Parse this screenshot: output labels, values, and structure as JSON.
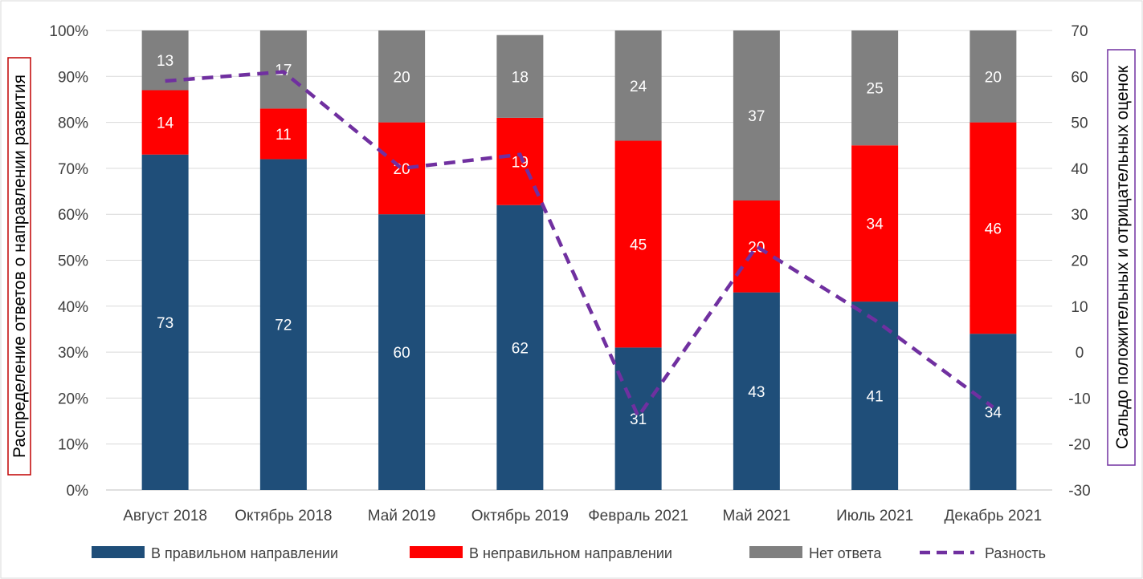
{
  "chart_data": {
    "type": "bar",
    "stacked": true,
    "categories": [
      "Август 2018",
      "Октябрь 2018",
      "Май 2019",
      "Октябрь 2019",
      "Февраль 2021",
      "Май 2021",
      "Июль 2021",
      "Декабрь 2021"
    ],
    "series": [
      {
        "name": "В правильном направлении",
        "color": "#1F4E79",
        "values": [
          73,
          72,
          60,
          62,
          31,
          43,
          41,
          34
        ]
      },
      {
        "name": "В неправильном направлении",
        "color": "#FF0000",
        "values": [
          14,
          11,
          20,
          19,
          45,
          20,
          34,
          46
        ]
      },
      {
        "name": "Нет ответа",
        "color": "#808080",
        "values": [
          13,
          17,
          20,
          18,
          24,
          37,
          25,
          20
        ]
      }
    ],
    "line_series": {
      "name": "Разность",
      "color": "#7030A0",
      "style": "dashed",
      "axis": "right",
      "values": [
        59,
        61,
        40,
        43,
        -14,
        23,
        7,
        -12
      ]
    },
    "ylabel": "Распределение ответов о направлении развития",
    "y2label": "Сальдо положительных и отрицательных оценок",
    "ylim": [
      0,
      100
    ],
    "y2lim": [
      -30,
      70
    ],
    "yticks": [
      "0%",
      "10%",
      "20%",
      "30%",
      "40%",
      "50%",
      "60%",
      "70%",
      "80%",
      "90%",
      "100%"
    ],
    "y2ticks": [
      "-30",
      "-20",
      "-10",
      "0",
      "10",
      "20",
      "30",
      "40",
      "50",
      "60",
      "70"
    ],
    "grid": true,
    "legend": "bottom"
  }
}
